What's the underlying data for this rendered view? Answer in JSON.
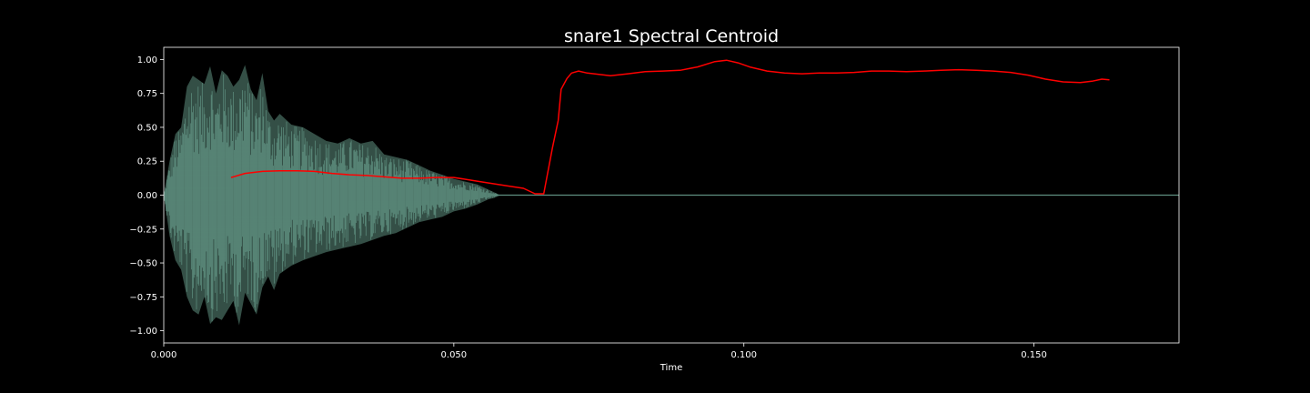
{
  "chart_data": {
    "type": "line",
    "title": "snare1 Spectral Centroid",
    "xlabel": "Time",
    "ylabel": "",
    "xlim": [
      0.0,
      0.175
    ],
    "ylim": [
      -1.09,
      1.09
    ],
    "x_ticks": [
      0.0,
      0.05,
      0.1,
      0.15
    ],
    "x_tick_labels": [
      "0.000",
      "0.050",
      "0.100",
      "0.150"
    ],
    "y_ticks": [
      1.0,
      0.75,
      0.5,
      0.25,
      0.0,
      -0.25,
      -0.5,
      -0.75,
      -1.0
    ],
    "y_tick_labels": [
      "1.00",
      "0.75",
      "0.50",
      "0.25",
      "0.00",
      "−0.25",
      "−0.50",
      "−0.75",
      "−1.00"
    ],
    "grid": false,
    "colors": {
      "background": "#000000",
      "axes": "#ffffff",
      "waveform": "#5e8f80",
      "centroid": "#ff0000"
    },
    "waveform": {
      "name": "",
      "envelope": {
        "x": [
          0.0,
          0.001,
          0.002,
          0.003,
          0.004,
          0.005,
          0.006,
          0.007,
          0.008,
          0.009,
          0.01,
          0.011,
          0.012,
          0.013,
          0.014,
          0.015,
          0.016,
          0.017,
          0.018,
          0.019,
          0.02,
          0.022,
          0.024,
          0.026,
          0.028,
          0.03,
          0.032,
          0.034,
          0.036,
          0.038,
          0.04,
          0.042,
          0.044,
          0.046,
          0.048,
          0.05,
          0.052,
          0.054,
          0.056,
          0.057,
          0.058,
          0.175
        ],
        "upper": [
          0.0,
          0.25,
          0.45,
          0.5,
          0.8,
          0.88,
          0.85,
          0.82,
          0.95,
          0.75,
          0.92,
          0.88,
          0.8,
          0.85,
          0.96,
          0.78,
          0.7,
          0.9,
          0.62,
          0.55,
          0.6,
          0.52,
          0.5,
          0.45,
          0.4,
          0.38,
          0.42,
          0.38,
          0.4,
          0.3,
          0.28,
          0.26,
          0.22,
          0.18,
          0.15,
          0.12,
          0.1,
          0.08,
          0.04,
          0.02,
          0.0,
          0.0
        ],
        "lower": [
          0.0,
          -0.3,
          -0.48,
          -0.55,
          -0.75,
          -0.85,
          -0.88,
          -0.75,
          -0.95,
          -0.9,
          -0.92,
          -0.85,
          -0.78,
          -0.96,
          -0.72,
          -0.8,
          -0.88,
          -0.68,
          -0.6,
          -0.7,
          -0.58,
          -0.52,
          -0.48,
          -0.45,
          -0.42,
          -0.4,
          -0.38,
          -0.36,
          -0.33,
          -0.3,
          -0.28,
          -0.24,
          -0.2,
          -0.18,
          -0.16,
          -0.12,
          -0.1,
          -0.07,
          -0.03,
          -0.02,
          0.0,
          0.0
        ]
      }
    },
    "centroid": {
      "name": "",
      "x": [
        0.0116,
        0.014,
        0.017,
        0.02,
        0.023,
        0.026,
        0.029,
        0.032,
        0.035,
        0.038,
        0.041,
        0.044,
        0.047,
        0.05,
        0.053,
        0.056,
        0.059,
        0.062,
        0.064,
        0.0655,
        0.067,
        0.068,
        0.0685,
        0.0695,
        0.0703,
        0.0715,
        0.073,
        0.075,
        0.077,
        0.08,
        0.083,
        0.086,
        0.089,
        0.092,
        0.095,
        0.097,
        0.099,
        0.101,
        0.104,
        0.107,
        0.11,
        0.113,
        0.116,
        0.119,
        0.122,
        0.125,
        0.128,
        0.131,
        0.134,
        0.137,
        0.14,
        0.143,
        0.146,
        0.149,
        0.152,
        0.155,
        0.158,
        0.16,
        0.1617,
        0.163
      ],
      "y": [
        0.13,
        0.16,
        0.175,
        0.18,
        0.18,
        0.175,
        0.16,
        0.15,
        0.145,
        0.135,
        0.125,
        0.125,
        0.13,
        0.13,
        0.11,
        0.09,
        0.07,
        0.05,
        0.01,
        0.01,
        0.35,
        0.55,
        0.78,
        0.86,
        0.9,
        0.915,
        0.9,
        0.89,
        0.88,
        0.895,
        0.91,
        0.915,
        0.92,
        0.945,
        0.985,
        0.995,
        0.975,
        0.945,
        0.915,
        0.9,
        0.895,
        0.9,
        0.9,
        0.905,
        0.915,
        0.915,
        0.91,
        0.915,
        0.92,
        0.925,
        0.92,
        0.915,
        0.905,
        0.885,
        0.855,
        0.835,
        0.83,
        0.84,
        0.855,
        0.85
      ]
    }
  }
}
